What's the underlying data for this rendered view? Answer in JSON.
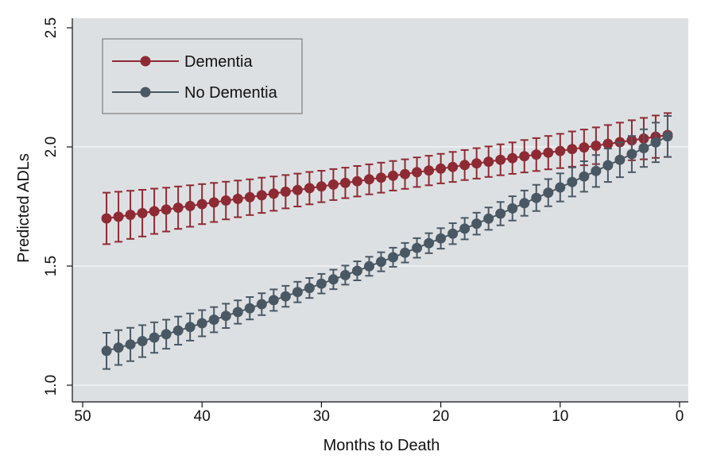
{
  "chart_data": {
    "type": "scatter",
    "title": "",
    "xlabel": "Months to Death",
    "ylabel": "Predicted ADLs",
    "xlim": [
      50,
      0
    ],
    "ylim": [
      1.0,
      2.5
    ],
    "x_reversed": true,
    "xticks": [
      "50",
      "40",
      "30",
      "20",
      "10",
      "0"
    ],
    "yticks": [
      "1.0",
      "1.5",
      "2.0",
      "2.5"
    ],
    "grid": true,
    "legend_position": "top-left",
    "error_bars": true,
    "x": [
      48,
      47,
      46,
      45,
      44,
      43,
      42,
      41,
      40,
      39,
      38,
      37,
      36,
      35,
      34,
      33,
      32,
      31,
      30,
      29,
      28,
      27,
      26,
      25,
      24,
      23,
      22,
      21,
      20,
      19,
      18,
      17,
      16,
      15,
      14,
      13,
      12,
      11,
      10,
      9,
      8,
      7,
      6,
      5,
      4,
      3,
      2,
      1
    ],
    "series": [
      {
        "name": "Dementia",
        "color": "#8e2a33",
        "values": [
          1.7,
          1.707,
          1.715,
          1.722,
          1.73,
          1.737,
          1.745,
          1.752,
          1.76,
          1.767,
          1.775,
          1.782,
          1.789,
          1.797,
          1.804,
          1.812,
          1.819,
          1.827,
          1.834,
          1.842,
          1.849,
          1.856,
          1.864,
          1.871,
          1.879,
          1.886,
          1.894,
          1.901,
          1.909,
          1.916,
          1.924,
          1.931,
          1.938,
          1.946,
          1.953,
          1.961,
          1.968,
          1.976,
          1.983,
          1.991,
          1.998,
          2.005,
          2.013,
          2.02,
          2.028,
          2.035,
          2.043,
          2.05
        ],
        "ci_halfwidth": [
          0.108,
          0.105,
          0.101,
          0.098,
          0.095,
          0.092,
          0.089,
          0.087,
          0.084,
          0.082,
          0.079,
          0.077,
          0.075,
          0.074,
          0.072,
          0.07,
          0.069,
          0.068,
          0.066,
          0.065,
          0.064,
          0.064,
          0.063,
          0.063,
          0.062,
          0.062,
          0.062,
          0.062,
          0.062,
          0.063,
          0.063,
          0.064,
          0.064,
          0.065,
          0.066,
          0.068,
          0.069,
          0.07,
          0.072,
          0.074,
          0.075,
          0.077,
          0.079,
          0.082,
          0.084,
          0.087,
          0.089,
          0.092
        ]
      },
      {
        "name": "No Dementia",
        "color": "#4a5864",
        "values": [
          1.144,
          1.158,
          1.171,
          1.185,
          1.2,
          1.214,
          1.229,
          1.244,
          1.26,
          1.275,
          1.291,
          1.307,
          1.323,
          1.34,
          1.357,
          1.373,
          1.391,
          1.408,
          1.426,
          1.444,
          1.462,
          1.48,
          1.499,
          1.518,
          1.537,
          1.556,
          1.576,
          1.596,
          1.616,
          1.636,
          1.657,
          1.678,
          1.699,
          1.72,
          1.742,
          1.764,
          1.786,
          1.808,
          1.83,
          1.853,
          1.876,
          1.899,
          1.923,
          1.946,
          1.97,
          1.995,
          2.019,
          2.044
        ],
        "ci_halfwidth": [
          0.076,
          0.073,
          0.07,
          0.067,
          0.064,
          0.061,
          0.059,
          0.057,
          0.055,
          0.053,
          0.051,
          0.049,
          0.047,
          0.046,
          0.045,
          0.044,
          0.043,
          0.042,
          0.041,
          0.041,
          0.04,
          0.04,
          0.04,
          0.04,
          0.04,
          0.041,
          0.041,
          0.042,
          0.043,
          0.044,
          0.045,
          0.046,
          0.047,
          0.049,
          0.051,
          0.053,
          0.055,
          0.057,
          0.059,
          0.061,
          0.064,
          0.067,
          0.07,
          0.073,
          0.076,
          0.079,
          0.083,
          0.086
        ]
      }
    ]
  },
  "colors": {
    "plot_background": "#dde0e3",
    "gridline": "#f2f3f4",
    "outer_background": "#ffffff"
  }
}
